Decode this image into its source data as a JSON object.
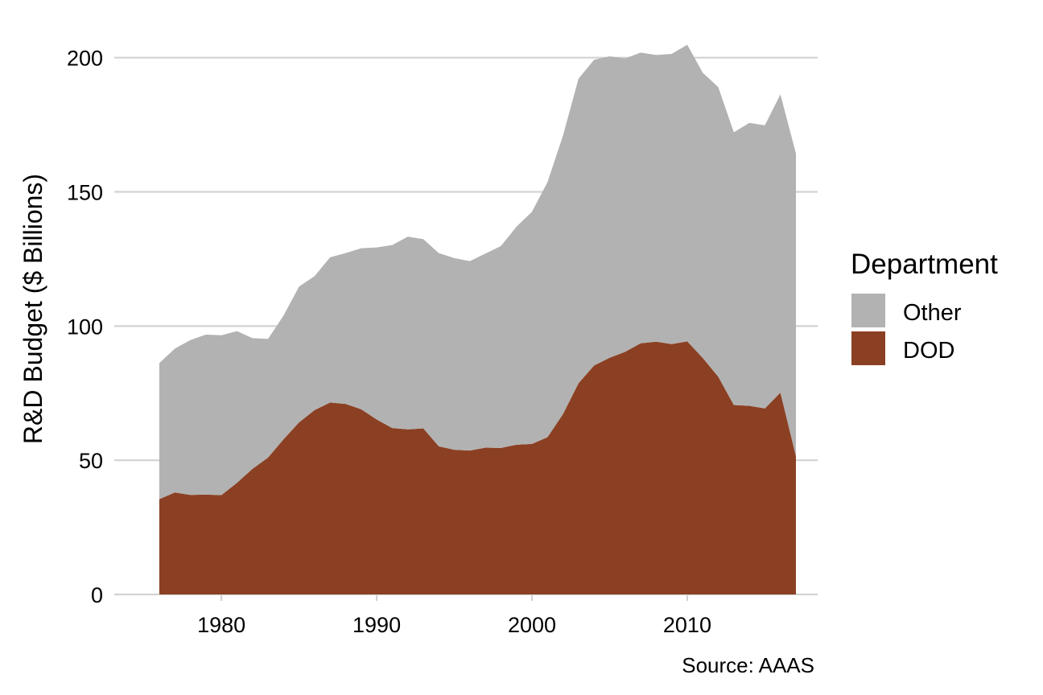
{
  "chart_data": {
    "type": "area",
    "stacked": true,
    "title": "",
    "xlabel": "",
    "ylabel": "R&D Budget ($ Billions)",
    "caption": "Source: AAAS",
    "x": [
      1976,
      1977,
      1978,
      1979,
      1980,
      1981,
      1982,
      1983,
      1984,
      1985,
      1986,
      1987,
      1988,
      1989,
      1990,
      1991,
      1992,
      1993,
      1994,
      1995,
      1996,
      1997,
      1998,
      1999,
      2000,
      2001,
      2002,
      2003,
      2004,
      2005,
      2006,
      2007,
      2008,
      2009,
      2010,
      2011,
      2012,
      2013,
      2014,
      2015,
      2016,
      2017
    ],
    "xticks": [
      1980,
      1990,
      2000,
      2010
    ],
    "xlim": [
      1973.1,
      2018.4
    ],
    "ylim": [
      0,
      205
    ],
    "yticks": [
      0,
      50,
      100,
      150,
      200
    ],
    "grid": "horizontal",
    "legend": {
      "title": "Department",
      "position": "right",
      "entries": [
        {
          "label": "Other",
          "color": "#b2b2b2"
        },
        {
          "label": "DOD",
          "color": "#8b4023"
        }
      ]
    },
    "series": [
      {
        "name": "DOD",
        "color": "#8b4023",
        "values": [
          35.5,
          38.0,
          37.1,
          37.2,
          37.0,
          41.6,
          46.8,
          51.0,
          57.8,
          64.1,
          68.7,
          71.5,
          71.0,
          69.0,
          65.2,
          62.0,
          61.5,
          61.9,
          55.2,
          53.9,
          53.6,
          54.7,
          54.6,
          55.8,
          56.1,
          58.6,
          67.2,
          78.7,
          85.3,
          88.2,
          90.4,
          93.6,
          94.2,
          93.3,
          94.3,
          88.1,
          81.1,
          70.6,
          70.3,
          69.3,
          75.2,
          51.5
        ]
      },
      {
        "name": "Other",
        "color": "#b2b2b2",
        "values": [
          50.7,
          53.6,
          57.7,
          59.6,
          59.6,
          56.5,
          48.7,
          44.2,
          46.1,
          50.6,
          49.9,
          54.1,
          56.2,
          60.0,
          64.1,
          68.2,
          71.8,
          70.5,
          72.0,
          71.4,
          70.6,
          72.3,
          75.2,
          81.2,
          86.5,
          95.0,
          103.8,
          113.5,
          113.9,
          112.3,
          109.3,
          108.3,
          106.8,
          108.1,
          110.5,
          106.3,
          107.9,
          101.6,
          105.4,
          105.5,
          111.1,
          112.8
        ]
      }
    ]
  }
}
